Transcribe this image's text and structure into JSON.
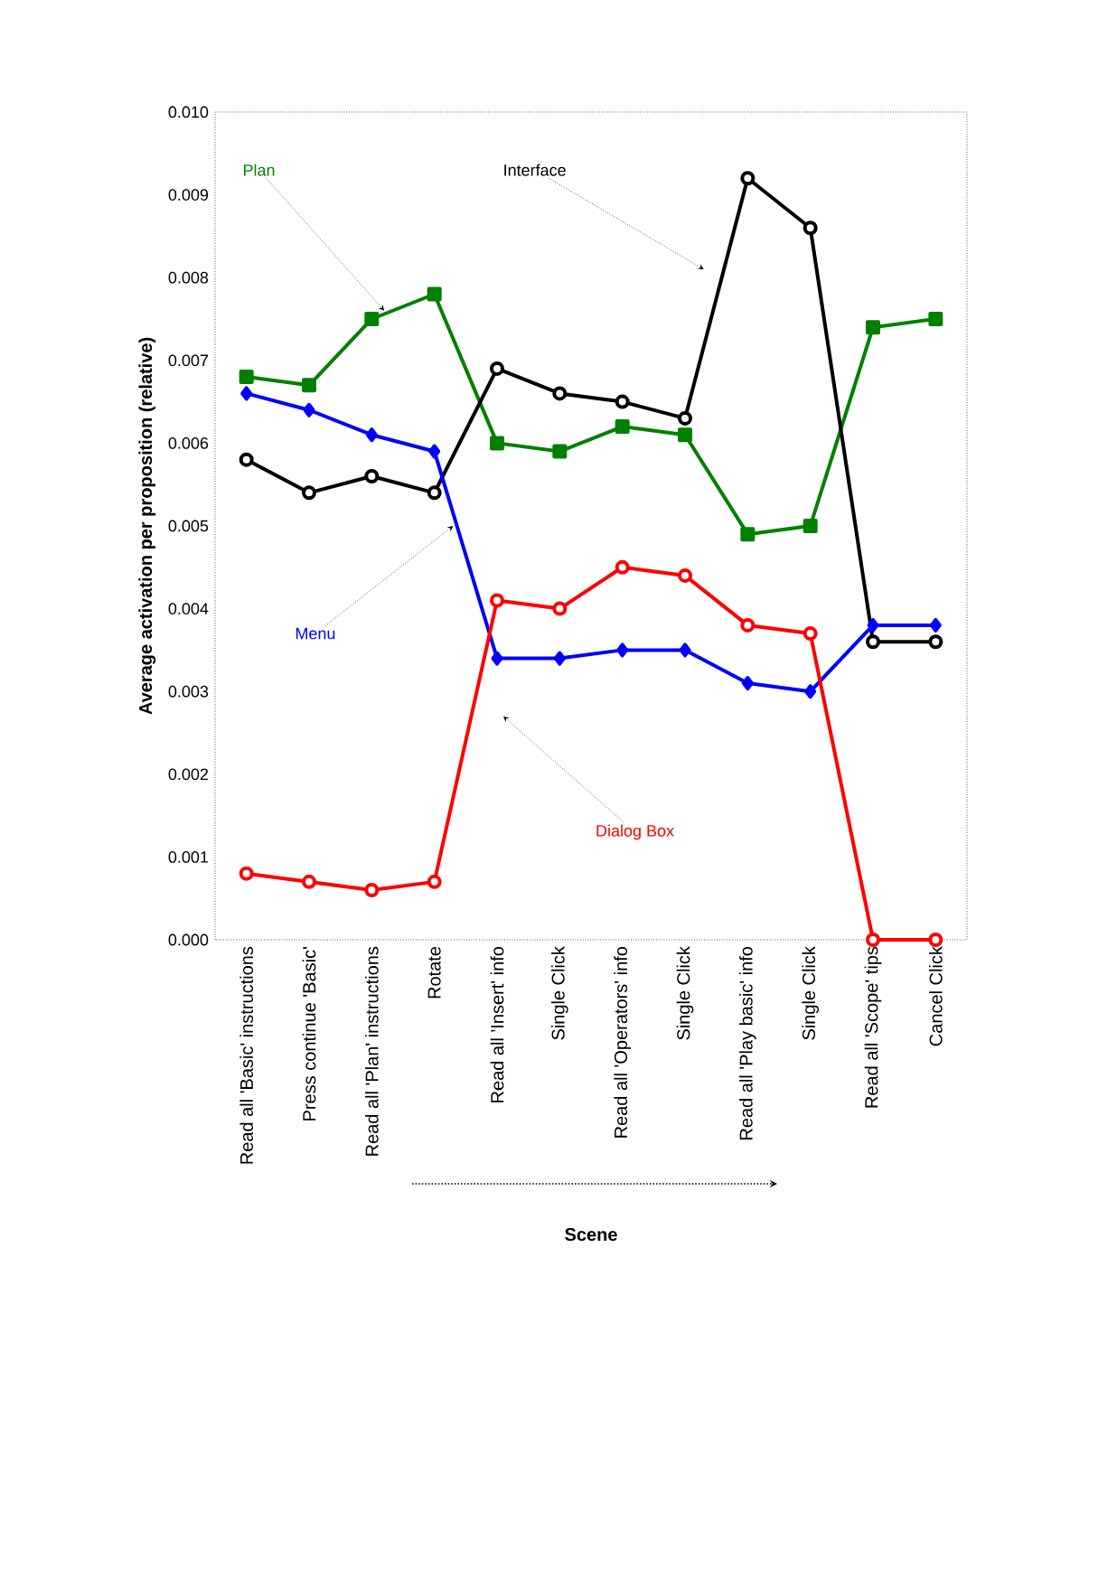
{
  "chart_data": {
    "type": "line",
    "xlabel": "Scene",
    "ylabel": "Average activation per proposition (relative)",
    "categories": [
      "Read all 'Basic' instructions",
      "Press continue 'Basic'",
      "Read all 'Plan' instructions",
      "Rotate",
      "Read all 'Insert' info",
      "Single Click",
      "Read all 'Operators' info",
      "Single Click",
      "Read all 'Play basic' info",
      "Single Click",
      "Read all 'Scope' tips",
      "Cancel Click"
    ],
    "ylim": [
      0,
      0.01
    ],
    "yticks": [
      {
        "value": 0,
        "label": "0.000"
      },
      {
        "value": 0.001,
        "label": "0.001"
      },
      {
        "value": 0.002,
        "label": "0.002"
      },
      {
        "value": 0.003,
        "label": "0.003"
      },
      {
        "value": 0.004,
        "label": "0.004"
      },
      {
        "value": 0.005,
        "label": "0.005"
      },
      {
        "value": 0.006,
        "label": "0.006"
      },
      {
        "value": 0.007,
        "label": "0.007"
      },
      {
        "value": 0.008,
        "label": "0.008"
      },
      {
        "value": 0.009,
        "label": "0.009"
      },
      {
        "value": 0.01,
        "label": "0.010"
      }
    ],
    "grid": false,
    "legend": false,
    "line_style": "solid",
    "series": [
      {
        "name": "Plan",
        "color": "#008000",
        "marker": "square",
        "values": [
          0.0068,
          0.0067,
          0.0075,
          0.0078,
          0.006,
          0.0059,
          0.0062,
          0.0061,
          0.0049,
          0.005,
          0.0074,
          0.0075
        ]
      },
      {
        "name": "Interface",
        "color": "#000000",
        "marker": "circle",
        "values": [
          0.0058,
          0.0054,
          0.0056,
          0.0054,
          0.0069,
          0.0066,
          0.0065,
          0.0063,
          0.0092,
          0.0086,
          0.0036,
          0.0036
        ]
      },
      {
        "name": "Menu",
        "color": "#0000ff",
        "marker": "diamond",
        "values": [
          0.0066,
          0.0064,
          0.0061,
          0.0059,
          0.0034,
          0.0034,
          0.0035,
          0.0035,
          0.0031,
          0.003,
          0.0038,
          0.0038
        ]
      },
      {
        "name": "Dialog Box",
        "color": "#ff0000",
        "marker": "circle",
        "values": [
          0.0008,
          0.0007,
          0.0006,
          0.0007,
          0.0041,
          0.004,
          0.0045,
          0.0044,
          0.0038,
          0.0037,
          0.0,
          0.0
        ]
      }
    ]
  }
}
